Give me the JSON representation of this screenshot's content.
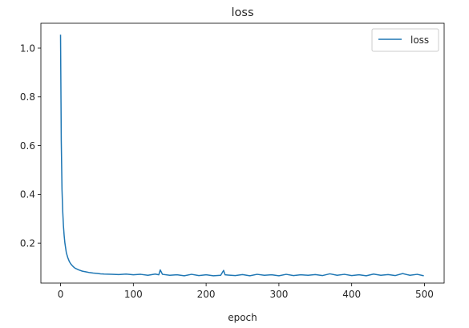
{
  "chart_data": {
    "type": "line",
    "title": "loss",
    "xlabel": "epoch",
    "ylabel": "",
    "xlim": [
      -27,
      527
    ],
    "ylim": [
      0.036,
      1.102
    ],
    "xticks": [
      0,
      100,
      200,
      300,
      400,
      500
    ],
    "yticks": [
      0.2,
      0.4,
      0.6,
      0.8,
      1.0
    ],
    "xtick_labels": [
      "0",
      "100",
      "200",
      "300",
      "400",
      "500"
    ],
    "ytick_labels": [
      "0.2",
      "0.4",
      "0.6",
      "0.8",
      "1.0"
    ],
    "grid": false,
    "legend_position": "top-right",
    "series": [
      {
        "name": "loss",
        "color": "#1f77b4",
        "x": [
          0,
          1,
          2,
          3,
          4,
          5,
          6,
          7,
          8,
          10,
          12,
          14,
          16,
          18,
          20,
          25,
          30,
          35,
          40,
          45,
          50,
          55,
          60,
          70,
          80,
          90,
          100,
          110,
          120,
          130,
          135,
          137,
          140,
          150,
          160,
          170,
          180,
          190,
          200,
          210,
          220,
          224,
          226,
          230,
          240,
          250,
          260,
          270,
          280,
          290,
          300,
          310,
          320,
          330,
          340,
          350,
          360,
          370,
          380,
          390,
          400,
          410,
          420,
          430,
          440,
          450,
          460,
          470,
          480,
          490,
          499
        ],
        "y": [
          1.055,
          0.62,
          0.42,
          0.33,
          0.27,
          0.23,
          0.2,
          0.18,
          0.16,
          0.14,
          0.125,
          0.115,
          0.108,
          0.102,
          0.097,
          0.09,
          0.085,
          0.082,
          0.079,
          0.077,
          0.076,
          0.074,
          0.073,
          0.072,
          0.071,
          0.073,
          0.07,
          0.072,
          0.068,
          0.073,
          0.07,
          0.09,
          0.072,
          0.068,
          0.07,
          0.066,
          0.072,
          0.067,
          0.07,
          0.066,
          0.068,
          0.088,
          0.07,
          0.069,
          0.067,
          0.071,
          0.066,
          0.072,
          0.068,
          0.07,
          0.066,
          0.072,
          0.067,
          0.07,
          0.068,
          0.071,
          0.067,
          0.074,
          0.068,
          0.072,
          0.067,
          0.07,
          0.066,
          0.073,
          0.068,
          0.071,
          0.067,
          0.075,
          0.068,
          0.072,
          0.066
        ]
      }
    ]
  }
}
